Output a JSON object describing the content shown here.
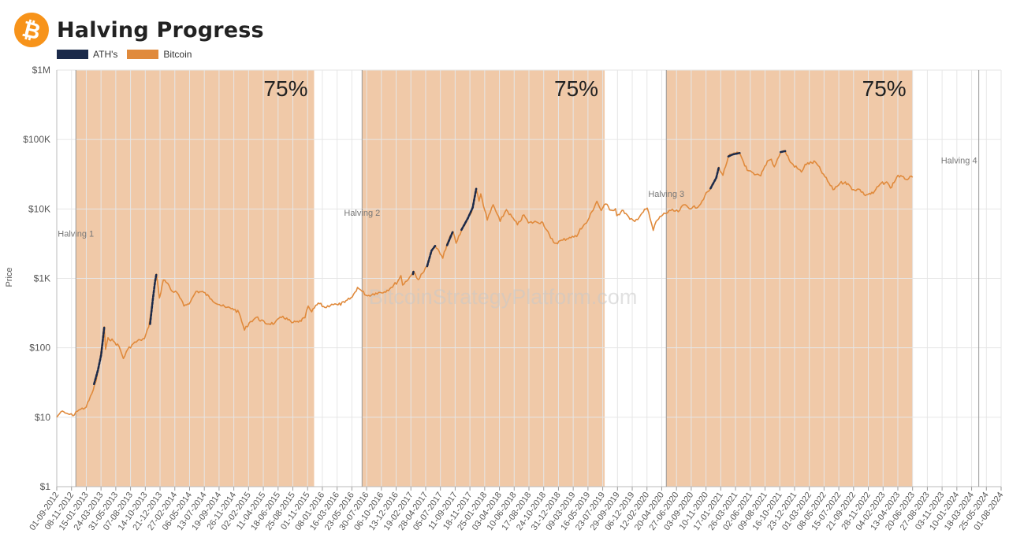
{
  "header": {
    "title": "Halving Progress",
    "logo_icon": "bitcoin-logo-icon",
    "logo_color": "#F7931A"
  },
  "legend": [
    {
      "label": "ATH's",
      "color": "#1B2A4A"
    },
    {
      "label": "Bitcoin",
      "color": "#E08A3C"
    }
  ],
  "watermark": "BitcoinStrategyPlatform.com",
  "colors": {
    "band": "#F0C9A8",
    "grid": "#E6E6E6",
    "halving_line": "#9A9A9A"
  },
  "chart_data": {
    "type": "line",
    "title": "Halving Progress",
    "xlabel": "",
    "ylabel": "Price",
    "y_scale": "log",
    "ylim": [
      1,
      1000000
    ],
    "y_ticks": [
      "$1",
      "$10",
      "$100",
      "$1K",
      "$10K",
      "$100K",
      "$1M"
    ],
    "x_range": [
      "2012-09-01",
      "2024-08-01"
    ],
    "x_tick_labels": [
      "01-09-2012",
      "08-11-2012",
      "15-01-2013",
      "24-03-2013",
      "31-05-2013",
      "07-08-2013",
      "14-10-2013",
      "21-12-2013",
      "27-02-2014",
      "06-05-2014",
      "13-07-2014",
      "19-09-2014",
      "26-11-2014",
      "02-02-2015",
      "11-04-2015",
      "18-06-2015",
      "25-08-2015",
      "01-11-2015",
      "08-01-2016",
      "16-03-2016",
      "23-05-2016",
      "30-07-2016",
      "06-10-2016",
      "13-12-2016",
      "19-02-2017",
      "28-04-2017",
      "05-07-2017",
      "11-09-2017",
      "18-11-2017",
      "25-01-2018",
      "03-04-2018",
      "10-06-2018",
      "17-08-2018",
      "24-10-2018",
      "31-12-2018",
      "09-03-2019",
      "16-05-2019",
      "23-07-2019",
      "29-09-2019",
      "06-12-2019",
      "12-02-2020",
      "20-04-2020",
      "27-06-2020",
      "03-09-2020",
      "10-11-2020",
      "17-01-2021",
      "26-03-2021",
      "02-06-2021",
      "09-08-2021",
      "16-10-2021",
      "23-12-2021",
      "01-03-2022",
      "08-05-2022",
      "15-07-2022",
      "21-09-2022",
      "28-11-2022",
      "04-02-2023",
      "13-04-2023",
      "20-06-2023",
      "27-08-2023",
      "03-11-2023",
      "10-01-2024",
      "18-03-2024",
      "25-05-2024",
      "01-08-2024"
    ],
    "bands": [
      {
        "start": "2012-11-28",
        "end": "2015-12-01",
        "label": "75%"
      },
      {
        "start": "2016-07-09",
        "end": "2019-08-01",
        "label": "75%"
      },
      {
        "start": "2020-05-11",
        "end": "2023-06-20",
        "label": "75%"
      }
    ],
    "halvings": [
      {
        "date": "2012-11-28",
        "label": "Halving 1",
        "label_price": 4000
      },
      {
        "date": "2016-07-09",
        "label": "Halving 2",
        "label_price": 8000
      },
      {
        "date": "2020-05-11",
        "label": "Halving 3",
        "label_price": 15000
      },
      {
        "date": "2024-04-20",
        "label": "Halving 4",
        "label_price": 45000
      }
    ],
    "series": [
      {
        "name": "Bitcoin",
        "color": "#E08A3C",
        "points": [
          [
            "2012-09-01",
            10
          ],
          [
            "2012-09-20",
            12
          ],
          [
            "2012-10-10",
            11.5
          ],
          [
            "2012-10-30",
            11
          ],
          [
            "2012-11-15",
            10.5
          ],
          [
            "2012-11-28",
            12
          ],
          [
            "2012-12-20",
            13
          ],
          [
            "2013-01-15",
            14
          ],
          [
            "2013-02-10",
            22
          ],
          [
            "2013-03-01",
            33
          ],
          [
            "2013-03-20",
            70
          ],
          [
            "2013-04-08",
            200
          ],
          [
            "2013-04-14",
            95
          ],
          [
            "2013-04-25",
            140
          ],
          [
            "2013-05-20",
            125
          ],
          [
            "2013-06-15",
            105
          ],
          [
            "2013-07-05",
            70
          ],
          [
            "2013-07-25",
            95
          ],
          [
            "2013-08-20",
            115
          ],
          [
            "2013-09-20",
            130
          ],
          [
            "2013-10-10",
            135
          ],
          [
            "2013-10-30",
            200
          ],
          [
            "2013-11-10",
            340
          ],
          [
            "2013-11-20",
            600
          ],
          [
            "2013-12-04",
            1150
          ],
          [
            "2013-12-18",
            520
          ],
          [
            "2014-01-05",
            950
          ],
          [
            "2014-01-25",
            850
          ],
          [
            "2014-02-15",
            650
          ],
          [
            "2014-03-10",
            620
          ],
          [
            "2014-04-10",
            400
          ],
          [
            "2014-05-10",
            460
          ],
          [
            "2014-06-05",
            650
          ],
          [
            "2014-07-10",
            630
          ],
          [
            "2014-08-15",
            500
          ],
          [
            "2014-09-20",
            420
          ],
          [
            "2014-10-20",
            380
          ],
          [
            "2014-11-20",
            370
          ],
          [
            "2014-12-20",
            320
          ],
          [
            "2015-01-14",
            180
          ],
          [
            "2015-02-05",
            230
          ],
          [
            "2015-03-10",
            275
          ],
          [
            "2015-04-20",
            225
          ],
          [
            "2015-06-01",
            225
          ],
          [
            "2015-07-10",
            285
          ],
          [
            "2015-08-20",
            230
          ],
          [
            "2015-09-20",
            235
          ],
          [
            "2015-10-20",
            270
          ],
          [
            "2015-11-04",
            400
          ],
          [
            "2015-11-20",
            330
          ],
          [
            "2015-12-20",
            440
          ],
          [
            "2016-01-20",
            380
          ],
          [
            "2016-02-20",
            425
          ],
          [
            "2016-03-20",
            415
          ],
          [
            "2016-04-20",
            450
          ],
          [
            "2016-05-25",
            540
          ],
          [
            "2016-06-18",
            740
          ],
          [
            "2016-07-09",
            650
          ],
          [
            "2016-08-02",
            560
          ],
          [
            "2016-09-10",
            615
          ],
          [
            "2016-10-20",
            640
          ],
          [
            "2016-11-20",
            740
          ],
          [
            "2016-12-20",
            900
          ],
          [
            "2017-01-04",
            1100
          ],
          [
            "2017-01-12",
            800
          ],
          [
            "2017-02-20",
            1100
          ],
          [
            "2017-03-03",
            1270
          ],
          [
            "2017-03-25",
            960
          ],
          [
            "2017-04-20",
            1250
          ],
          [
            "2017-05-10",
            1800
          ],
          [
            "2017-05-25",
            2400
          ],
          [
            "2017-06-11",
            2950
          ],
          [
            "2017-07-16",
            1950
          ],
          [
            "2017-08-05",
            3200
          ],
          [
            "2017-09-01",
            4700
          ],
          [
            "2017-09-15",
            3200
          ],
          [
            "2017-10-10",
            4900
          ],
          [
            "2017-11-08",
            7400
          ],
          [
            "2017-11-25",
            8800
          ],
          [
            "2017-12-17",
            19500
          ],
          [
            "2017-12-30",
            13000
          ],
          [
            "2018-01-07",
            16500
          ],
          [
            "2018-02-06",
            6900
          ],
          [
            "2018-03-05",
            11500
          ],
          [
            "2018-04-06",
            6600
          ],
          [
            "2018-05-05",
            9800
          ],
          [
            "2018-06-25",
            5900
          ],
          [
            "2018-07-25",
            8200
          ],
          [
            "2018-08-15",
            6300
          ],
          [
            "2018-09-20",
            6500
          ],
          [
            "2018-10-20",
            6400
          ],
          [
            "2018-11-25",
            3800
          ],
          [
            "2018-12-15",
            3200
          ],
          [
            "2019-01-20",
            3550
          ],
          [
            "2019-02-20",
            3900
          ],
          [
            "2019-03-25",
            4000
          ],
          [
            "2019-04-10",
            5200
          ],
          [
            "2019-05-10",
            6300
          ],
          [
            "2019-06-26",
            12900
          ],
          [
            "2019-07-16",
            9500
          ],
          [
            "2019-08-06",
            11800
          ],
          [
            "2019-08-30",
            9600
          ],
          [
            "2019-09-20",
            10100
          ],
          [
            "2019-09-26",
            8000
          ],
          [
            "2019-10-26",
            9500
          ],
          [
            "2019-11-25",
            7100
          ],
          [
            "2019-12-18",
            6600
          ],
          [
            "2020-01-20",
            8700
          ],
          [
            "2020-02-13",
            10300
          ],
          [
            "2020-03-12",
            4900
          ],
          [
            "2020-03-25",
            6600
          ],
          [
            "2020-04-30",
            8700
          ],
          [
            "2020-05-11",
            8600
          ],
          [
            "2020-06-01",
            9500
          ],
          [
            "2020-07-05",
            9100
          ],
          [
            "2020-08-01",
            11500
          ],
          [
            "2020-09-05",
            10200
          ],
          [
            "2020-10-10",
            11200
          ],
          [
            "2020-11-05",
            15500
          ],
          [
            "2020-11-30",
            19500
          ],
          [
            "2020-12-27",
            28000
          ],
          [
            "2021-01-08",
            40000
          ],
          [
            "2021-01-27",
            30500
          ],
          [
            "2021-02-21",
            57000
          ],
          [
            "2021-03-13",
            61000
          ],
          [
            "2021-04-14",
            64000
          ],
          [
            "2021-05-19",
            36000
          ],
          [
            "2021-06-22",
            31000
          ],
          [
            "2021-07-20",
            30000
          ],
          [
            "2021-08-20",
            49000
          ],
          [
            "2021-09-07",
            52000
          ],
          [
            "2021-09-21",
            40500
          ],
          [
            "2021-10-20",
            66000
          ],
          [
            "2021-11-10",
            68000
          ],
          [
            "2021-12-04",
            47000
          ],
          [
            "2022-01-24",
            34000
          ],
          [
            "2022-02-10",
            44000
          ],
          [
            "2022-03-29",
            47500
          ],
          [
            "2022-05-12",
            29000
          ],
          [
            "2022-06-18",
            19000
          ],
          [
            "2022-07-20",
            23500
          ],
          [
            "2022-08-14",
            24500
          ],
          [
            "2022-09-20",
            19000
          ],
          [
            "2022-10-20",
            19100
          ],
          [
            "2022-11-09",
            16000
          ],
          [
            "2022-12-20",
            16800
          ],
          [
            "2023-01-20",
            22500
          ],
          [
            "2023-02-20",
            24500
          ],
          [
            "2023-03-10",
            20000
          ],
          [
            "2023-04-14",
            30500
          ],
          [
            "2023-05-15",
            27000
          ],
          [
            "2023-06-20",
            28500
          ]
        ]
      },
      {
        "name": "ATH's",
        "color": "#1B2A4A",
        "segments": [
          [
            [
              "2013-02-20",
              30
            ],
            [
              "2013-03-10",
              48
            ],
            [
              "2013-03-25",
              80
            ],
            [
              "2013-04-08",
              200
            ]
          ],
          [
            [
              "2013-11-05",
              220
            ],
            [
              "2013-11-18",
              500
            ],
            [
              "2013-11-28",
              900
            ],
            [
              "2013-12-04",
              1150
            ]
          ],
          [
            [
              "2017-03-01",
              1150
            ],
            [
              "2017-03-03",
              1270
            ]
          ],
          [
            [
              "2017-05-05",
              1500
            ],
            [
              "2017-05-25",
              2500
            ],
            [
              "2017-06-11",
              2950
            ]
          ],
          [
            [
              "2017-08-05",
              3000
            ],
            [
              "2017-09-01",
              4800
            ]
          ],
          [
            [
              "2017-10-10",
              5000
            ],
            [
              "2017-11-08",
              7300
            ],
            [
              "2017-12-01",
              10500
            ],
            [
              "2017-12-17",
              19500
            ]
          ],
          [
            [
              "2020-12-01",
              19800
            ],
            [
              "2020-12-27",
              28000
            ],
            [
              "2021-01-08",
              40000
            ]
          ],
          [
            [
              "2021-02-21",
              57000
            ],
            [
              "2021-03-13",
              61000
            ],
            [
              "2021-04-14",
              64000
            ]
          ],
          [
            [
              "2021-10-20",
              66000
            ],
            [
              "2021-11-10",
              68000
            ]
          ]
        ]
      }
    ],
    "grid": true,
    "legend_position": "top-left"
  }
}
